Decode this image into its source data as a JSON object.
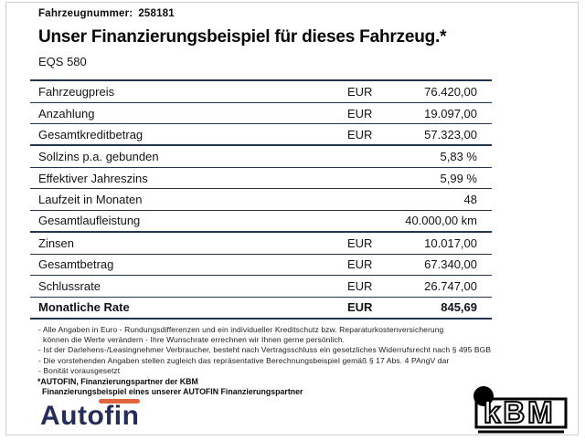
{
  "header": {
    "vehicle_number_label": "Fahrzeugnummer:",
    "vehicle_number_value": "258181",
    "title": "Unser Finanzierungsbeispiel für dieses Fahrzeug.*",
    "model": "EQS 580"
  },
  "finance_table": {
    "rows": [
      {
        "label": "Fahrzeugpreis",
        "currency": "EUR",
        "value": "76.420,00",
        "bold": false
      },
      {
        "label": "Anzahlung",
        "currency": "EUR",
        "value": "19.097,00",
        "bold": false
      },
      {
        "label": "Gesamtkreditbetrag",
        "currency": "EUR",
        "value": "57.323,00",
        "bold": false
      },
      {
        "label": "Sollzins p.a. gebunden",
        "currency": "",
        "value": "5,83 %",
        "bold": false
      },
      {
        "label": "Effektiver Jahreszins",
        "currency": "",
        "value": "5,99 %",
        "bold": false
      },
      {
        "label": "Laufzeit in Monaten",
        "currency": "",
        "value": "48",
        "bold": false
      },
      {
        "label": "Gesamtlaufleistung",
        "currency": "",
        "value": "40.000,00 km",
        "bold": false
      },
      {
        "label": "Zinsen",
        "currency": "EUR",
        "value": "10.017,00",
        "bold": false
      },
      {
        "label": "Gesamtbetrag",
        "currency": "EUR",
        "value": "67.340,00",
        "bold": false
      },
      {
        "label": "Schlussrate",
        "currency": "EUR",
        "value": "26.747,00",
        "bold": false
      },
      {
        "label": "Monatliche Rate",
        "currency": "EUR",
        "value": "845,69",
        "bold": true
      }
    ]
  },
  "footnotes": [
    "- Alle Angaben in Euro - Rundungsdifferenzen und ein individueller Kreditschutz bzw. Reparaturkostenversicherung",
    "können die Werte verändern - Ihre Wunschrate errechnen wir Ihnen gerne persönlich.",
    "- Ist der Darlehens-/Leasingnehmer Verbraucher, besteht nach Vertragsschluss ein gesetzliches Widerrufsrecht nach § 495 BGB",
    "- Die vorstehenden Angaben stellen zugleich das repräsentative Berechnungsbeispiel gemäß § 17 Abs. 4 PAngV dar",
    "- Bonität vorausgesetzt"
  ],
  "partner_note": [
    "*AUTOFIN, Finanzierungspartner der KBM",
    "Finanzierungsbeispiel eines unserer AUTOFIN Finanzierungspartner"
  ],
  "logos": {
    "autofin_text": "Autofin",
    "kbm_text": "kBM"
  },
  "colors": {
    "accent_orange": "#E0653F",
    "brand_navy": "#262D5B",
    "table_line": "#22344E"
  }
}
